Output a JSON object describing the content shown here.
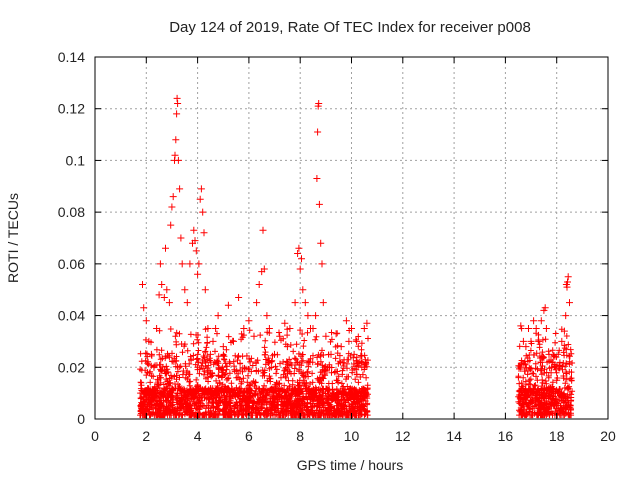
{
  "chart_data": {
    "type": "scatter",
    "title": "Day 124 of 2019, Rate Of TEC Index for receiver p008",
    "xlabel": "GPS time / hours",
    "ylabel": "ROTI / TECUs",
    "xlim": [
      0,
      20
    ],
    "ylim": [
      0,
      0.14
    ],
    "xticks": [
      "0",
      "2",
      "4",
      "6",
      "8",
      "10",
      "12",
      "14",
      "16",
      "18",
      "20"
    ],
    "xtick_values": [
      0,
      2,
      4,
      6,
      8,
      10,
      12,
      14,
      16,
      18,
      20
    ],
    "yticks": [
      "0",
      "0.02",
      "0.04",
      "0.06",
      "0.08",
      "0.1",
      "0.12",
      "0.14"
    ],
    "ytick_values": [
      0,
      0.02,
      0.04,
      0.06,
      0.08,
      0.1,
      0.12,
      0.14
    ],
    "grid": true,
    "marker": "+",
    "color": "#ff0000",
    "series": [
      {
        "name": "ROTI",
        "points": [
          [
            1.8,
            0.005
          ],
          [
            1.85,
            0.052
          ],
          [
            1.9,
            0.043
          ],
          [
            2.0,
            0.038
          ],
          [
            2.1,
            0.03
          ],
          [
            2.2,
            0.025
          ],
          [
            2.3,
            0.02
          ],
          [
            2.4,
            0.035
          ],
          [
            2.5,
            0.048
          ],
          [
            2.55,
            0.06
          ],
          [
            2.6,
            0.052
          ],
          [
            2.7,
            0.047
          ],
          [
            2.75,
            0.066
          ],
          [
            2.8,
            0.05
          ],
          [
            2.9,
            0.045
          ],
          [
            2.95,
            0.075
          ],
          [
            3.0,
            0.082
          ],
          [
            3.05,
            0.086
          ],
          [
            3.1,
            0.1
          ],
          [
            3.12,
            0.102
          ],
          [
            3.15,
            0.108
          ],
          [
            3.18,
            0.118
          ],
          [
            3.2,
            0.124
          ],
          [
            3.22,
            0.122
          ],
          [
            3.25,
            0.1
          ],
          [
            3.3,
            0.089
          ],
          [
            3.35,
            0.07
          ],
          [
            3.4,
            0.06
          ],
          [
            3.5,
            0.05
          ],
          [
            3.6,
            0.045
          ],
          [
            3.7,
            0.06
          ],
          [
            3.8,
            0.068
          ],
          [
            3.85,
            0.073
          ],
          [
            3.9,
            0.069
          ],
          [
            3.95,
            0.065
          ],
          [
            4.0,
            0.056
          ],
          [
            4.05,
            0.06
          ],
          [
            4.1,
            0.085
          ],
          [
            4.15,
            0.089
          ],
          [
            4.2,
            0.08
          ],
          [
            4.25,
            0.072
          ],
          [
            4.3,
            0.05
          ],
          [
            4.4,
            0.035
          ],
          [
            4.5,
            0.025
          ],
          [
            4.6,
            0.03
          ],
          [
            4.7,
            0.035
          ],
          [
            4.8,
            0.04
          ],
          [
            5.0,
            0.028
          ],
          [
            5.2,
            0.044
          ],
          [
            5.4,
            0.03
          ],
          [
            5.6,
            0.047
          ],
          [
            5.8,
            0.035
          ],
          [
            6.0,
            0.038
          ],
          [
            6.2,
            0.032
          ],
          [
            6.3,
            0.045
          ],
          [
            6.4,
            0.052
          ],
          [
            6.5,
            0.057
          ],
          [
            6.55,
            0.073
          ],
          [
            6.6,
            0.058
          ],
          [
            6.7,
            0.04
          ],
          [
            6.8,
            0.035
          ],
          [
            7.0,
            0.025
          ],
          [
            7.2,
            0.032
          ],
          [
            7.4,
            0.037
          ],
          [
            7.5,
            0.028
          ],
          [
            7.6,
            0.035
          ],
          [
            7.8,
            0.045
          ],
          [
            7.9,
            0.064
          ],
          [
            7.95,
            0.066
          ],
          [
            8.0,
            0.058
          ],
          [
            8.05,
            0.062
          ],
          [
            8.1,
            0.05
          ],
          [
            8.2,
            0.045
          ],
          [
            8.3,
            0.04
          ],
          [
            8.4,
            0.035
          ],
          [
            8.5,
            0.035
          ],
          [
            8.6,
            0.04
          ],
          [
            8.65,
            0.093
          ],
          [
            8.68,
            0.111
          ],
          [
            8.7,
            0.121
          ],
          [
            8.72,
            0.122
          ],
          [
            8.75,
            0.083
          ],
          [
            8.8,
            0.068
          ],
          [
            8.85,
            0.06
          ],
          [
            8.9,
            0.045
          ],
          [
            9.0,
            0.032
          ],
          [
            9.2,
            0.025
          ],
          [
            9.4,
            0.033
          ],
          [
            9.6,
            0.028
          ],
          [
            9.8,
            0.038
          ],
          [
            9.9,
            0.03
          ],
          [
            10.0,
            0.035
          ],
          [
            10.1,
            0.025
          ],
          [
            10.2,
            0.03
          ],
          [
            10.3,
            0.022
          ],
          [
            10.4,
            0.02
          ],
          [
            10.5,
            0.035
          ],
          [
            10.6,
            0.037
          ],
          [
            16.6,
            0.036
          ],
          [
            16.7,
            0.03
          ],
          [
            16.8,
            0.028
          ],
          [
            16.9,
            0.035
          ],
          [
            17.0,
            0.03
          ],
          [
            17.1,
            0.038
          ],
          [
            17.2,
            0.035
          ],
          [
            17.3,
            0.03
          ],
          [
            17.4,
            0.038
          ],
          [
            17.5,
            0.042
          ],
          [
            17.55,
            0.043
          ],
          [
            17.6,
            0.035
          ],
          [
            17.7,
            0.025
          ],
          [
            17.8,
            0.02
          ],
          [
            18.0,
            0.015
          ],
          [
            18.2,
            0.03
          ],
          [
            18.3,
            0.034
          ],
          [
            18.35,
            0.04
          ],
          [
            18.38,
            0.052
          ],
          [
            18.4,
            0.051
          ],
          [
            18.42,
            0.053
          ],
          [
            18.45,
            0.055
          ],
          [
            18.5,
            0.045
          ]
        ]
      }
    ],
    "bands": [
      {
        "x_start": 1.75,
        "x_end": 10.65
      },
      {
        "x_start": 16.5,
        "x_end": 18.6
      }
    ]
  }
}
